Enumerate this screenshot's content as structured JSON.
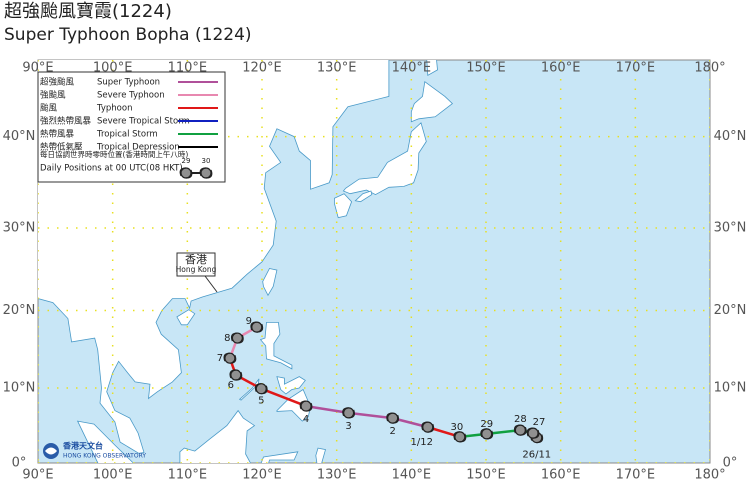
{
  "header": {
    "title_zh": "超強颱風寶霞(1224)",
    "title_en": "Super Typhoon Bopha (1224)"
  },
  "map": {
    "lon_ticks": [
      {
        "value": 90,
        "label": "90°E"
      },
      {
        "value": 100,
        "label": "100°E"
      },
      {
        "value": 110,
        "label": "110°E"
      },
      {
        "value": 120,
        "label": "120°E"
      },
      {
        "value": 130,
        "label": "130°E"
      },
      {
        "value": 140,
        "label": "140°E"
      },
      {
        "value": 150,
        "label": "150°E"
      },
      {
        "value": 160,
        "label": "160°E"
      },
      {
        "value": 170,
        "label": "170°E"
      },
      {
        "value": 180,
        "label": "180°"
      }
    ],
    "lat_ticks": [
      {
        "value": 0,
        "label": "0°"
      },
      {
        "value": 10,
        "label": "10°N"
      },
      {
        "value": 20,
        "label": "20°N"
      },
      {
        "value": 30,
        "label": "30°N"
      },
      {
        "value": 40,
        "label": "40°N"
      }
    ],
    "hong_kong": {
      "zh": "香港",
      "en": "Hong Kong"
    },
    "logo": {
      "zh": "香港天文台",
      "en": "HONG KONG OBSERVATORY"
    }
  },
  "legend": {
    "entries": [
      {
        "zh": "超強颱風",
        "en": "Super Typhoon",
        "color": "#b0509a"
      },
      {
        "zh": "強颱風",
        "en": "Severe Typhoon",
        "color": "#e888b0"
      },
      {
        "zh": "颱風",
        "en": "Typhoon",
        "color": "#e01818"
      },
      {
        "zh": "強烈熱帶風暴",
        "en": "Severe Tropical Storm",
        "color": "#1020c0"
      },
      {
        "zh": "熱帶風暴",
        "en": "Tropical Storm",
        "color": "#10a040"
      },
      {
        "zh": "熱帶低氣壓",
        "en": "Tropical Depression",
        "color": "#000000"
      }
    ],
    "daily_zh": "每日協調世界時零時位置(香港時間上午八時)",
    "daily_en": "Daily Positions at 00 UTC(08 HKT)",
    "sample": [
      "29",
      "30"
    ]
  },
  "track": [
    {
      "label": "26/11",
      "lon": 156.8,
      "lat": 3.4,
      "intensity": 4
    },
    {
      "label": "27",
      "lon": 156.3,
      "lat": 4.0,
      "intensity": 4
    },
    {
      "label": "28",
      "lon": 154.6,
      "lat": 4.4,
      "intensity": 4
    },
    {
      "label": "29",
      "lon": 150.1,
      "lat": 3.9,
      "intensity": 4
    },
    {
      "label": "30",
      "lon": 146.5,
      "lat": 3.5,
      "intensity": 4
    },
    {
      "label": "1/12",
      "lon": 142.2,
      "lat": 4.8,
      "intensity": 2
    },
    {
      "label": "2",
      "lon": 137.5,
      "lat": 6.0,
      "intensity": 0
    },
    {
      "label": "3",
      "lon": 131.6,
      "lat": 6.7,
      "intensity": 0
    },
    {
      "label": "4",
      "lon": 125.9,
      "lat": 7.6,
      "intensity": 0
    },
    {
      "label": "5",
      "lon": 119.9,
      "lat": 9.9,
      "intensity": 2
    },
    {
      "label": "6",
      "lon": 116.5,
      "lat": 11.7,
      "intensity": 2
    },
    {
      "label": "7",
      "lon": 115.7,
      "lat": 13.9,
      "intensity": 2
    },
    {
      "label": "8",
      "lon": 116.7,
      "lat": 16.5,
      "intensity": 1
    },
    {
      "label": "9",
      "lon": 119.3,
      "lat": 17.9,
      "intensity": 1
    }
  ]
}
